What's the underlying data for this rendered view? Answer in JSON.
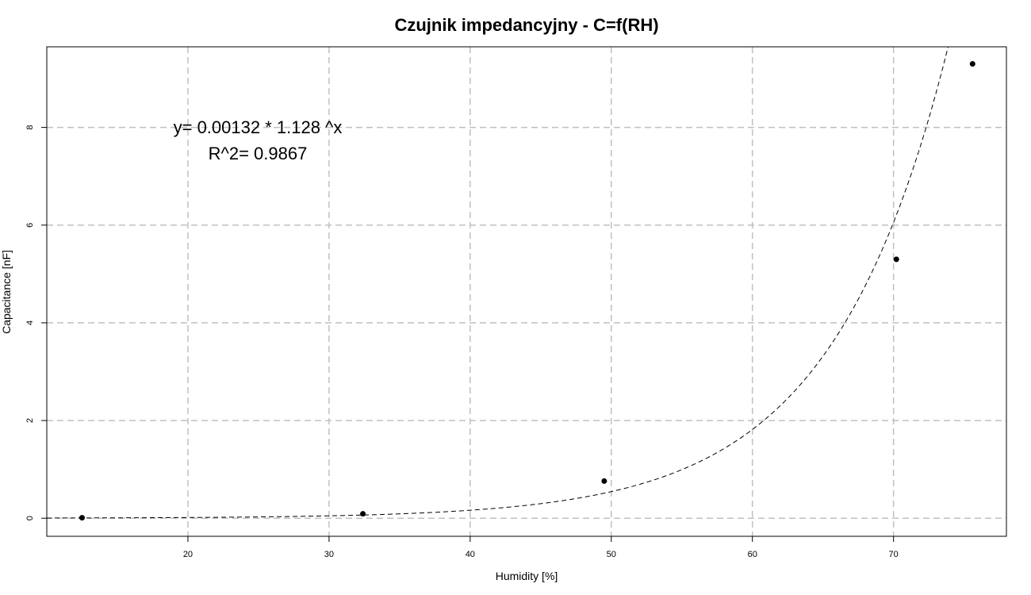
{
  "chart_data": {
    "type": "scatter",
    "title": "Czujnik impedancyjny - C=f(RH)",
    "xlabel": "Humidity [%]",
    "ylabel": "Capacitance [nF]",
    "xlim": [
      10,
      78
    ],
    "ylim": [
      -0.37,
      9.65
    ],
    "xticks": [
      20,
      30,
      40,
      50,
      60,
      70
    ],
    "yticks": [
      0,
      2,
      4,
      6,
      8
    ],
    "grid": true,
    "series": [
      {
        "points": [
          {
            "x": 12.5,
            "y": 0.01
          },
          {
            "x": 32.4,
            "y": 0.09
          },
          {
            "x": 49.5,
            "y": 0.76
          },
          {
            "x": 70.2,
            "y": 5.3
          },
          {
            "x": 75.6,
            "y": 9.3
          }
        ]
      }
    ],
    "fit": {
      "a": 0.00132,
      "b": 1.128
    },
    "annotations": [
      "y= 0.00132 * 1.128 ^x",
      "R^2= 0.9867"
    ]
  }
}
